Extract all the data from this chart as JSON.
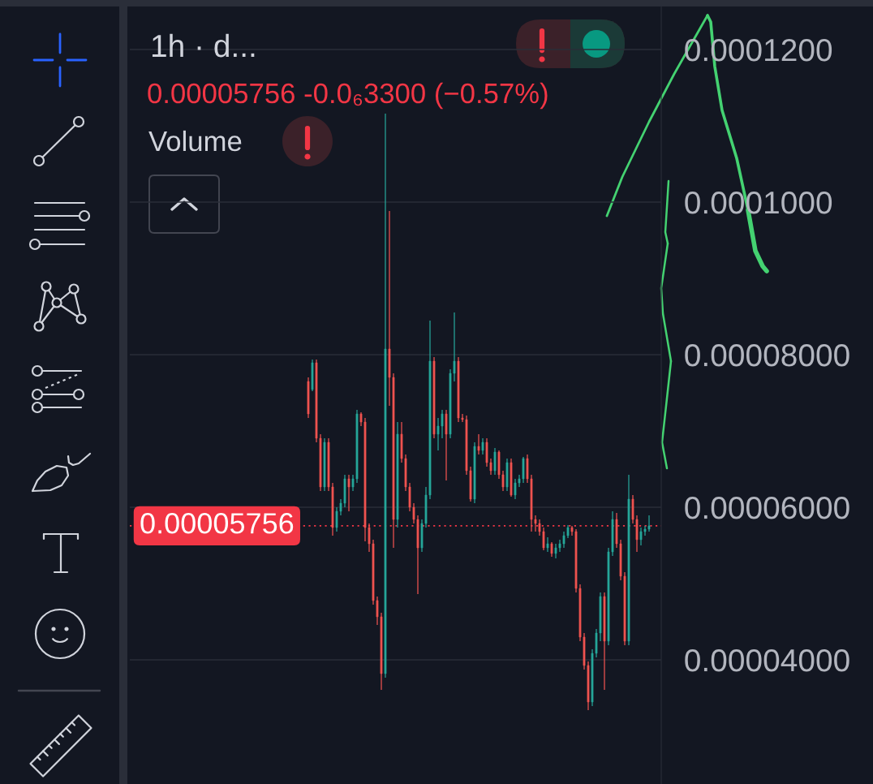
{
  "chart_data": {
    "type": "candlestick",
    "title": "1h · d...",
    "annotations": [
      "0.00005756 -0.0₆3300 (−0.57%)",
      "Volume"
    ],
    "categories": [
      null,
      null,
      null,
      null,
      null,
      null,
      null,
      null,
      null,
      null,
      null,
      null,
      null,
      null,
      null,
      null,
      null,
      null,
      null,
      null,
      null,
      null,
      null,
      null,
      null,
      null,
      null,
      null,
      null,
      null,
      null,
      null,
      null,
      null,
      null,
      null,
      null,
      null,
      null,
      null,
      null,
      null,
      null,
      null,
      null,
      null,
      null,
      null,
      null,
      null,
      null,
      null,
      null,
      null,
      null,
      null,
      null,
      null,
      null,
      null,
      null,
      null,
      null,
      null,
      null,
      null,
      null,
      null,
      null,
      null,
      null,
      null,
      null,
      null,
      null,
      null,
      null,
      null,
      null,
      null,
      null,
      null,
      null,
      null,
      null
    ],
    "ohlc": [
      [
        7.649e-05,
        7.702e-05,
        7.17e-05,
        7.223e-05
      ],
      [
        7.543e-05,
        7.936e-05,
        7.521e-05,
        7.894e-05
      ],
      [
        7.894e-05,
        7.936e-05,
        6.851e-05,
        6.904e-05
      ],
      [
        6.904e-05,
        6.958e-05,
        6.213e-05,
        6.266e-05
      ],
      [
        6.266e-05,
        6.904e-05,
        6.213e-05,
        6.851e-05
      ],
      [
        6.851e-05,
        6.904e-05,
        6.213e-05,
        6.266e-05
      ],
      [
        6.266e-05,
        6.319e-05,
        5.628e-05,
        5.734e-05
      ],
      [
        5.734e-05,
        6e-05,
        5.681e-05,
        5.947e-05
      ],
      [
        5.947e-05,
        6.106e-05,
        5.894e-05,
        6.053e-05
      ],
      [
        6.053e-05,
        6.426e-05,
        6e-05,
        6.372e-05
      ],
      [
        6.372e-05,
        6.426e-05,
        5.947e-05,
        6.266e-05
      ],
      [
        6.266e-05,
        6.426e-05,
        6.213e-05,
        6.372e-05
      ],
      [
        6.372e-05,
        7.277e-05,
        6.319e-05,
        7.223e-05
      ],
      [
        7.223e-05,
        7.245e-05,
        7.064e-05,
        7.117e-05
      ],
      [
        7.117e-05,
        7.17e-05,
        5.553e-05,
        5.734e-05
      ],
      [
        5.734e-05,
        5.787e-05,
        5.415e-05,
        5.521e-05
      ],
      [
        5.521e-05,
        5.575e-05,
        4.723e-05,
        4.777e-05
      ],
      [
        4.777e-05,
        4.83e-05,
        4.458e-05,
        4.564e-05
      ],
      [
        4.564e-05,
        4.617e-05,
        3.606e-05,
        3.819e-05
      ],
      [
        3.819e-05,
        0.0001116,
        3.766e-05,
        8.075e-05
      ],
      [
        8.075e-05,
        9.883e-05,
        7.33e-05,
        7.702e-05
      ],
      [
        7.702e-05,
        7.755e-05,
        5.468e-05,
        5.84e-05
      ],
      [
        5.84e-05,
        7.117e-05,
        5.734e-05,
        6.958e-05
      ],
      [
        6.958e-05,
        7.117e-05,
        6.585e-05,
        6.638e-05
      ],
      [
        6.638e-05,
        6.692e-05,
        6.213e-05,
        6.266e-05
      ],
      [
        6.266e-05,
        6.319e-05,
        5.947e-05,
        6e-05
      ],
      [
        6e-05,
        6.053e-05,
        5.787e-05,
        5.84e-05
      ],
      [
        5.84e-05,
        5.894e-05,
        4.862e-05,
        5.468e-05
      ],
      [
        5.468e-05,
        5.84e-05,
        5.415e-05,
        5.787e-05
      ],
      [
        5.787e-05,
        6.266e-05,
        5.734e-05,
        6.16e-05
      ],
      [
        6.16e-05,
        8.447e-05,
        6.106e-05,
        7.915e-05
      ],
      [
        7.915e-05,
        7.968e-05,
        6.904e-05,
        6.958e-05
      ],
      [
        6.958e-05,
        7.17e-05,
        6.745e-05,
        7.064e-05
      ],
      [
        7.064e-05,
        7.277e-05,
        6.904e-05,
        7.223e-05
      ],
      [
        7.223e-05,
        7.277e-05,
        6.351e-05,
        6.958e-05
      ],
      [
        6.958e-05,
        7.809e-05,
        6.904e-05,
        7.755e-05
      ],
      [
        7.755e-05,
        8.553e-05,
        7.649e-05,
        7.915e-05
      ],
      [
        7.915e-05,
        7.968e-05,
        7.117e-05,
        7.17e-05
      ],
      [
        7.17e-05,
        7.223e-05,
        7.117e-05,
        7.149e-05
      ],
      [
        7.149e-05,
        7.202e-05,
        6.426e-05,
        6.479e-05
      ],
      [
        6.479e-05,
        6.532e-05,
        6.075e-05,
        6.106e-05
      ],
      [
        6.106e-05,
        6.851e-05,
        6.053e-05,
        6.798e-05
      ],
      [
        6.798e-05,
        6.958e-05,
        6.692e-05,
        6.745e-05
      ],
      [
        6.745e-05,
        6.904e-05,
        6.692e-05,
        6.851e-05
      ],
      [
        6.851e-05,
        6.904e-05,
        6.532e-05,
        6.585e-05
      ],
      [
        6.585e-05,
        6.638e-05,
        6.426e-05,
        6.479e-05
      ],
      [
        6.479e-05,
        6.777e-05,
        6.426e-05,
        6.723e-05
      ],
      [
        6.723e-05,
        6.745e-05,
        6.372e-05,
        6.426e-05
      ],
      [
        6.426e-05,
        6.479e-05,
        6.213e-05,
        6.266e-05
      ],
      [
        6.266e-05,
        6.638e-05,
        6.213e-05,
        6.585e-05
      ],
      [
        6.585e-05,
        6.638e-05,
        6.138e-05,
        6.16e-05
      ],
      [
        6.16e-05,
        6.372e-05,
        6.106e-05,
        6.319e-05
      ],
      [
        6.319e-05,
        6.426e-05,
        6.266e-05,
        6.372e-05
      ],
      [
        6.372e-05,
        6.66e-05,
        6.319e-05,
        6.638e-05
      ],
      [
        6.638e-05,
        6.692e-05,
        6.319e-05,
        6.372e-05
      ],
      [
        6.372e-05,
        6.426e-05,
        5.681e-05,
        5.84e-05
      ],
      [
        5.84e-05,
        5.894e-05,
        5.681e-05,
        5.787e-05
      ],
      [
        5.787e-05,
        5.84e-05,
        5.628e-05,
        5.681e-05
      ],
      [
        5.681e-05,
        5.734e-05,
        5.436e-05,
        5.468e-05
      ],
      [
        5.468e-05,
        5.606e-05,
        5.415e-05,
        5.521e-05
      ],
      [
        5.521e-05,
        5.543e-05,
        5.351e-05,
        5.394e-05
      ],
      [
        5.394e-05,
        5.521e-05,
        5.33e-05,
        5.468e-05
      ],
      [
        5.468e-05,
        5.575e-05,
        5.415e-05,
        5.521e-05
      ],
      [
        5.521e-05,
        5.681e-05,
        5.468e-05,
        5.628e-05
      ],
      [
        5.628e-05,
        5.766e-05,
        5.596e-05,
        5.734e-05
      ],
      [
        5.734e-05,
        5.755e-05,
        5.628e-05,
        5.681e-05
      ],
      [
        5.681e-05,
        5.713e-05,
        4.883e-05,
        4.936e-05
      ],
      [
        4.936e-05,
        4.989e-05,
        4.245e-05,
        4.298e-05
      ],
      [
        4.298e-05,
        4.351e-05,
        3.872e-05,
        3.926e-05
      ],
      [
        3.926e-05,
        3.979e-05,
        3.34e-05,
        3.447e-05
      ],
      [
        3.447e-05,
        4.138e-05,
        3.394e-05,
        4.085e-05
      ],
      [
        4.085e-05,
        4.404e-05,
        4.032e-05,
        4.351e-05
      ],
      [
        4.351e-05,
        4.883e-05,
        4.245e-05,
        4.83e-05
      ],
      [
        4.83e-05,
        4.883e-05,
        3.606e-05,
        4.245e-05
      ],
      [
        4.245e-05,
        5.468e-05,
        4.192e-05,
        5.415e-05
      ],
      [
        5.415e-05,
        5.947e-05,
        5.362e-05,
        5.84e-05
      ],
      [
        5.84e-05,
        5.926e-05,
        5.468e-05,
        5.521e-05
      ],
      [
        5.521e-05,
        5.575e-05,
        5.043e-05,
        5.096e-05
      ],
      [
        5.096e-05,
        5.149e-05,
        4.192e-05,
        4.245e-05
      ],
      [
        4.245e-05,
        6.426e-05,
        4.192e-05,
        6.106e-05
      ],
      [
        6.106e-05,
        6.16e-05,
        5.787e-05,
        5.84e-05
      ],
      [
        5.84e-05,
        5.894e-05,
        5.415e-05,
        5.575e-05
      ],
      [
        5.575e-05,
        5.734e-05,
        5.5e-05,
        5.681e-05
      ],
      [
        5.681e-05,
        5.755e-05,
        5.628e-05,
        5.713e-05
      ],
      [
        5.713e-05,
        5.894e-05,
        5.681e-05,
        5.756e-05
      ]
    ],
    "colors": [
      "#ef5350",
      "#26a69a",
      "#ef5350",
      "#ef5350",
      "#26a69a",
      "#ef5350",
      "#ef5350",
      "#26a69a",
      "#26a69a",
      "#26a69a",
      "#ef5350",
      "#26a69a",
      "#26a69a",
      "#ef5350",
      "#ef5350",
      "#ef5350",
      "#ef5350",
      "#ef5350",
      "#ef5350",
      "#26a69a",
      "#ef5350",
      "#ef5350",
      "#26a69a",
      "#ef5350",
      "#ef5350",
      "#ef5350",
      "#ef5350",
      "#ef5350",
      "#26a69a",
      "#26a69a",
      "#26a69a",
      "#ef5350",
      "#26a69a",
      "#26a69a",
      "#ef5350",
      "#26a69a",
      "#26a69a",
      "#ef5350",
      "#ef5350",
      "#ef5350",
      "#ef5350",
      "#26a69a",
      "#ef5350",
      "#26a69a",
      "#ef5350",
      "#ef5350",
      "#26a69a",
      "#ef5350",
      "#ef5350",
      "#26a69a",
      "#ef5350",
      "#26a69a",
      "#26a69a",
      "#26a69a",
      "#ef5350",
      "#ef5350",
      "#ef5350",
      "#ef5350",
      "#ef5350",
      "#26a69a",
      "#ef5350",
      "#26a69a",
      "#26a69a",
      "#26a69a",
      "#26a69a",
      "#ef5350",
      "#ef5350",
      "#ef5350",
      "#ef5350",
      "#ef5350",
      "#26a69a",
      "#26a69a",
      "#26a69a",
      "#ef5350",
      "#26a69a",
      "#26a69a",
      "#ef5350",
      "#ef5350",
      "#ef5350",
      "#26a69a",
      "#ef5350",
      "#ef5350",
      "#26a69a",
      "#26a69a",
      "#26a69a"
    ],
    "ylim": [
      2.372e-05,
      0.00012564
    ],
    "yticks": [
      {
        "value": 4e-05,
        "label": "0.00004000"
      },
      {
        "value": 6e-05,
        "label": "0.00006000"
      },
      {
        "value": 8e-05,
        "label": "0.00008000"
      },
      {
        "value": 0.0001,
        "label": "0.0001000"
      },
      {
        "value": 0.00012,
        "label": "0.0001200"
      }
    ],
    "ref_lines": [
      {
        "axis": "y",
        "value": 5.756e-05,
        "label": "0.00005756",
        "color": "#f23645",
        "line_style": "dotted"
      }
    ],
    "grid": "y",
    "tick_labels": "y"
  }
}
